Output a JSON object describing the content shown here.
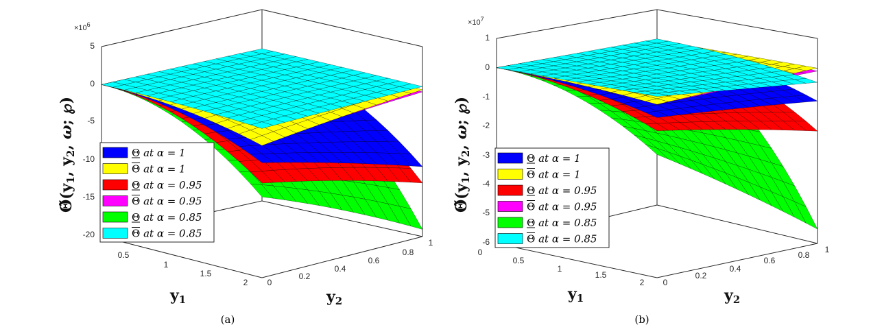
{
  "chart_data": [
    {
      "type": "surface",
      "panel_label": "(a)",
      "exponent_label": "×10",
      "exponent_power": "6",
      "zlabel": "Θ̃(y1, y2, ω; ℘)",
      "zlabel_main": "Θ̃(",
      "zlabel_tail": "; ℘)",
      "zlabel_y1": "y",
      "zlabel_y2": "y",
      "zlabel_sub1": "1",
      "zlabel_sub2": "2",
      "zlabel_omega": "ω",
      "xlabel": "y",
      "xlabel_sub": "1",
      "ylabel": "y",
      "ylabel_sub": "2",
      "x_ticks": [
        "0.5",
        "1",
        "1.5",
        "2"
      ],
      "y_ticks": [
        "0",
        "0.2",
        "0.4",
        "0.6",
        "0.8",
        "1"
      ],
      "z_ticks": [
        "5",
        "0",
        "-5",
        "-10",
        "-15",
        "-20"
      ],
      "zlim": [
        -20,
        5
      ],
      "xlim": [
        0,
        2
      ],
      "ylim": [
        0,
        1
      ],
      "corner_values": [
        {
          "name": "Θ at α = 1",
          "z_at_x_max_y0": -6,
          "z_at_x_max_y1": -10.5
        },
        {
          "name": "Θ̄ at α = 1",
          "z_at_x_max_y0": -3.5,
          "z_at_x_max_y1": -0.5
        },
        {
          "name": "Θ at α = 0.95",
          "z_at_x_max_y0": -9,
          "z_at_x_max_y1": -12.5
        },
        {
          "name": "Θ̄ at α = 0.95",
          "z_at_x_max_y0": -3.2,
          "z_at_x_max_y1": -0.8
        },
        {
          "name": "Θ at α = 0.85",
          "z_at_x_max_y0": -11,
          "z_at_x_max_y1": -18.5
        },
        {
          "name": "Θ̄ at α = 0.85",
          "z_at_x_max_y0": -1,
          "z_at_x_max_y1": -0.2
        }
      ]
    },
    {
      "type": "surface",
      "panel_label": "(b)",
      "exponent_label": "×10",
      "exponent_power": "7",
      "zlabel": "Θ̃(y1, y2, ω; ℘)",
      "zlabel_main": "Θ̃(",
      "zlabel_tail": "; ℘)",
      "zlabel_y1": "y",
      "zlabel_y2": "y",
      "zlabel_sub1": "1",
      "zlabel_sub2": "2",
      "zlabel_omega": "ω",
      "xlabel": "y",
      "xlabel_sub": "1",
      "ylabel": "y",
      "ylabel_sub": "2",
      "x_ticks": [
        "0",
        "0.5",
        "1",
        "1.5",
        "2"
      ],
      "y_ticks": [
        "0",
        "0.2",
        "0.4",
        "0.6",
        "0.8",
        "1"
      ],
      "z_ticks": [
        "1",
        "0",
        "-1",
        "-2",
        "-3",
        "-4",
        "-5",
        "-6"
      ],
      "zlim": [
        -6,
        1
      ],
      "xlim": [
        0,
        2
      ],
      "ylim": [
        0,
        1
      ],
      "corner_values": [
        {
          "name": "Θ at α = 1",
          "z_at_x_max_y0": -0.8,
          "z_at_x_max_y1": -1.1
        },
        {
          "name": "Θ̄ at α = 1",
          "z_at_x_max_y0": -0.3,
          "z_at_x_max_y1": 0.0
        },
        {
          "name": "Θ at α = 0.95",
          "z_at_x_max_y0": -1.3,
          "z_at_x_max_y1": -2.1
        },
        {
          "name": "Θ̄ at α = 0.95",
          "z_at_x_max_y0": -0.3,
          "z_at_x_max_y1": -0.1
        },
        {
          "name": "Θ at α = 0.85",
          "z_at_x_max_y0": -2.2,
          "z_at_x_max_y1": -5.4
        },
        {
          "name": "Θ̄ at α = 0.85",
          "z_at_x_max_y0": 0.0,
          "z_at_x_max_y1": -0.5
        }
      ]
    }
  ],
  "legend": [
    {
      "color": "#0000ff",
      "sym": "Θ",
      "bar": "under",
      "text": " at α = 1"
    },
    {
      "color": "#ffff00",
      "sym": "Θ",
      "bar": "over",
      "text": " at α = 1"
    },
    {
      "color": "#ff0000",
      "sym": "Θ",
      "bar": "under",
      "text": " at α = 0.95"
    },
    {
      "color": "#ff00ff",
      "sym": "Θ",
      "bar": "over",
      "text": " at α = 0.95"
    },
    {
      "color": "#00ff00",
      "sym": "Θ",
      "bar": "under",
      "text": " at α = 0.85"
    },
    {
      "color": "#00ffff",
      "sym": "Θ",
      "bar": "over",
      "text": " at α = 0.85"
    }
  ]
}
